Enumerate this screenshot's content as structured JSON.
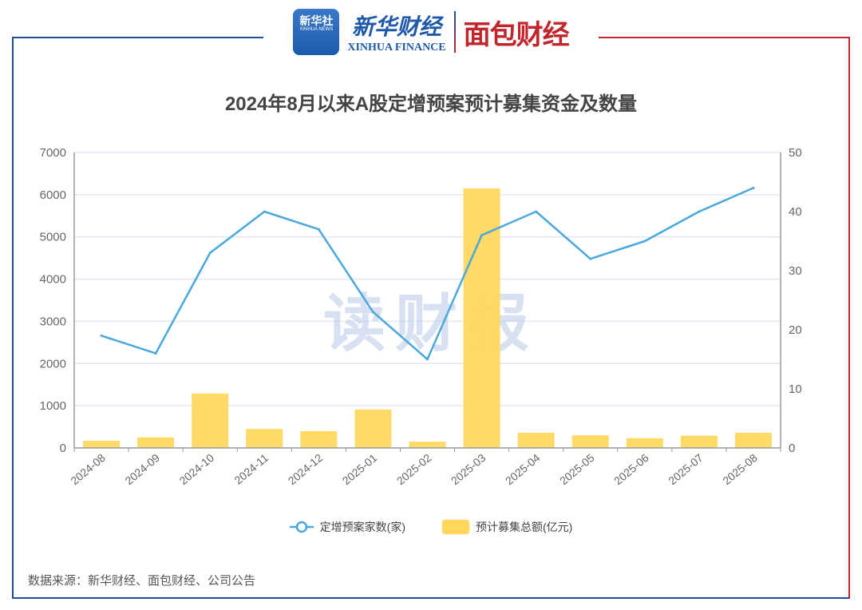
{
  "header": {
    "xinhua_icon_cn": "新华社",
    "xinhua_icon_en": "XINHUA NEWS",
    "xinhua_finance_cn": "新华财经",
    "xinhua_finance_en": "XINHUA FINANCE",
    "mianbao": "面包财经"
  },
  "watermark": "读财报",
  "source": "数据来源：新华财经、面包财经、公司公告",
  "colors": {
    "line": "#4aa8dc",
    "bar": "#ffd75a",
    "grid": "#e3e8f3",
    "axis": "#999999",
    "frame_left": "#1f4e9a",
    "frame_right": "#c0262c"
  },
  "chart_data": {
    "type": "bar+line",
    "title": "2024年8月以来A股定增预案预计募集资金及数量",
    "categories": [
      "2024-08",
      "2024-09",
      "2024-10",
      "2024-11",
      "2024-12",
      "2025-01",
      "2025-02",
      "2025-03",
      "2025-04",
      "2025-05",
      "2025-06",
      "2025-07",
      "2025-08"
    ],
    "series": [
      {
        "name": "定增预案家数(家)",
        "type": "line",
        "axis": "right",
        "values": [
          19,
          16,
          33,
          40,
          37,
          23,
          15,
          36,
          40,
          32,
          35,
          40,
          44
        ]
      },
      {
        "name": "预计募集总额(亿元)",
        "type": "bar",
        "axis": "left",
        "values": [
          170,
          250,
          1290,
          450,
          400,
          910,
          150,
          6150,
          360,
          300,
          230,
          290,
          360
        ]
      }
    ],
    "y_left": {
      "ylim": [
        0,
        7000
      ],
      "ticks": [
        "0",
        "1000",
        "2000",
        "3000",
        "4000",
        "5000",
        "6000",
        "7000"
      ]
    },
    "y_right": {
      "ylim": [
        0,
        50
      ],
      "ticks": [
        "0",
        "10",
        "20",
        "30",
        "40",
        "50"
      ]
    },
    "grid": true,
    "legend": "bottom"
  }
}
